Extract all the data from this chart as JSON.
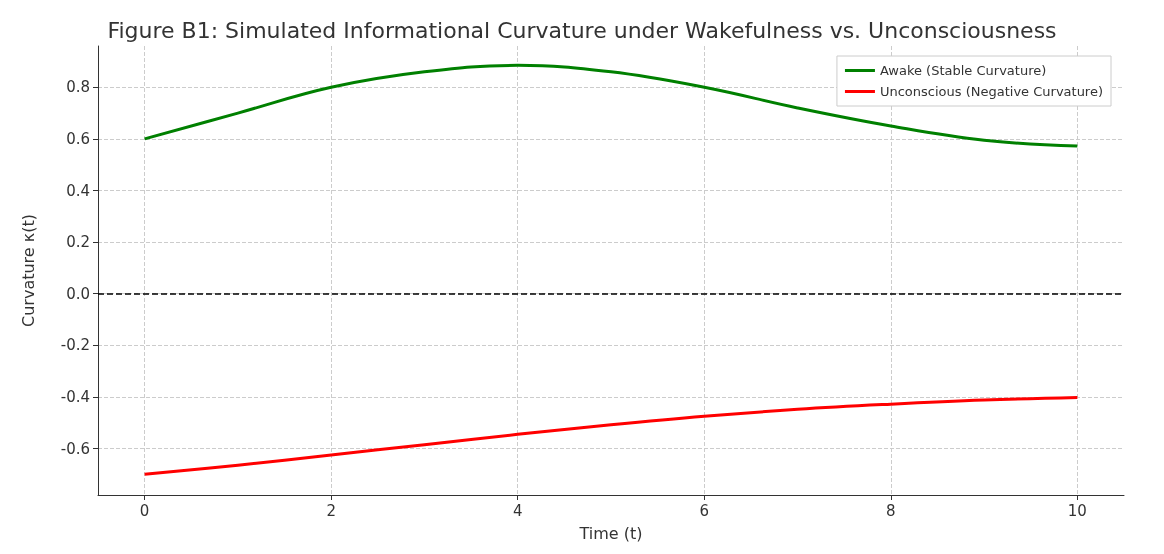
{
  "chart_data": {
    "type": "line",
    "title": "Figure B1: Simulated Informational Curvature under Wakefulness vs. Unconsciousness",
    "xlabel": "Time (t)",
    "ylabel": "Curvature κ(t)",
    "x": [
      0,
      1,
      2,
      3,
      4,
      5,
      6,
      7,
      8,
      9,
      10
    ],
    "series": [
      {
        "name": "Awake (Stable Curvature)",
        "color": "#008000",
        "values": [
          0.6,
          0.7,
          0.8,
          0.86,
          0.885,
          0.86,
          0.8,
          0.72,
          0.65,
          0.595,
          0.572
        ]
      },
      {
        "name": "Unconscious (Negative Curvature)",
        "color": "#ff0000",
        "values": [
          -0.7,
          -0.665,
          -0.625,
          -0.585,
          -0.545,
          -0.508,
          -0.475,
          -0.448,
          -0.428,
          -0.412,
          -0.402
        ]
      }
    ],
    "xlim": [
      -0.5,
      10.5
    ],
    "xticks": [
      0,
      2,
      4,
      6,
      8,
      10
    ],
    "ylim": [
      -0.78,
      0.96
    ],
    "yticks": [
      -0.6,
      -0.4,
      -0.2,
      {
        "value": 0,
        "label": "0.0"
      },
      0.2,
      0.4,
      0.6,
      0.8
    ],
    "ref_lines": [
      {
        "axis": "y",
        "value": 0,
        "color": "#000000",
        "line_style": "dashed"
      }
    ],
    "grid": true,
    "legend": "top right",
    "marker": "none",
    "line_style": "solid"
  }
}
